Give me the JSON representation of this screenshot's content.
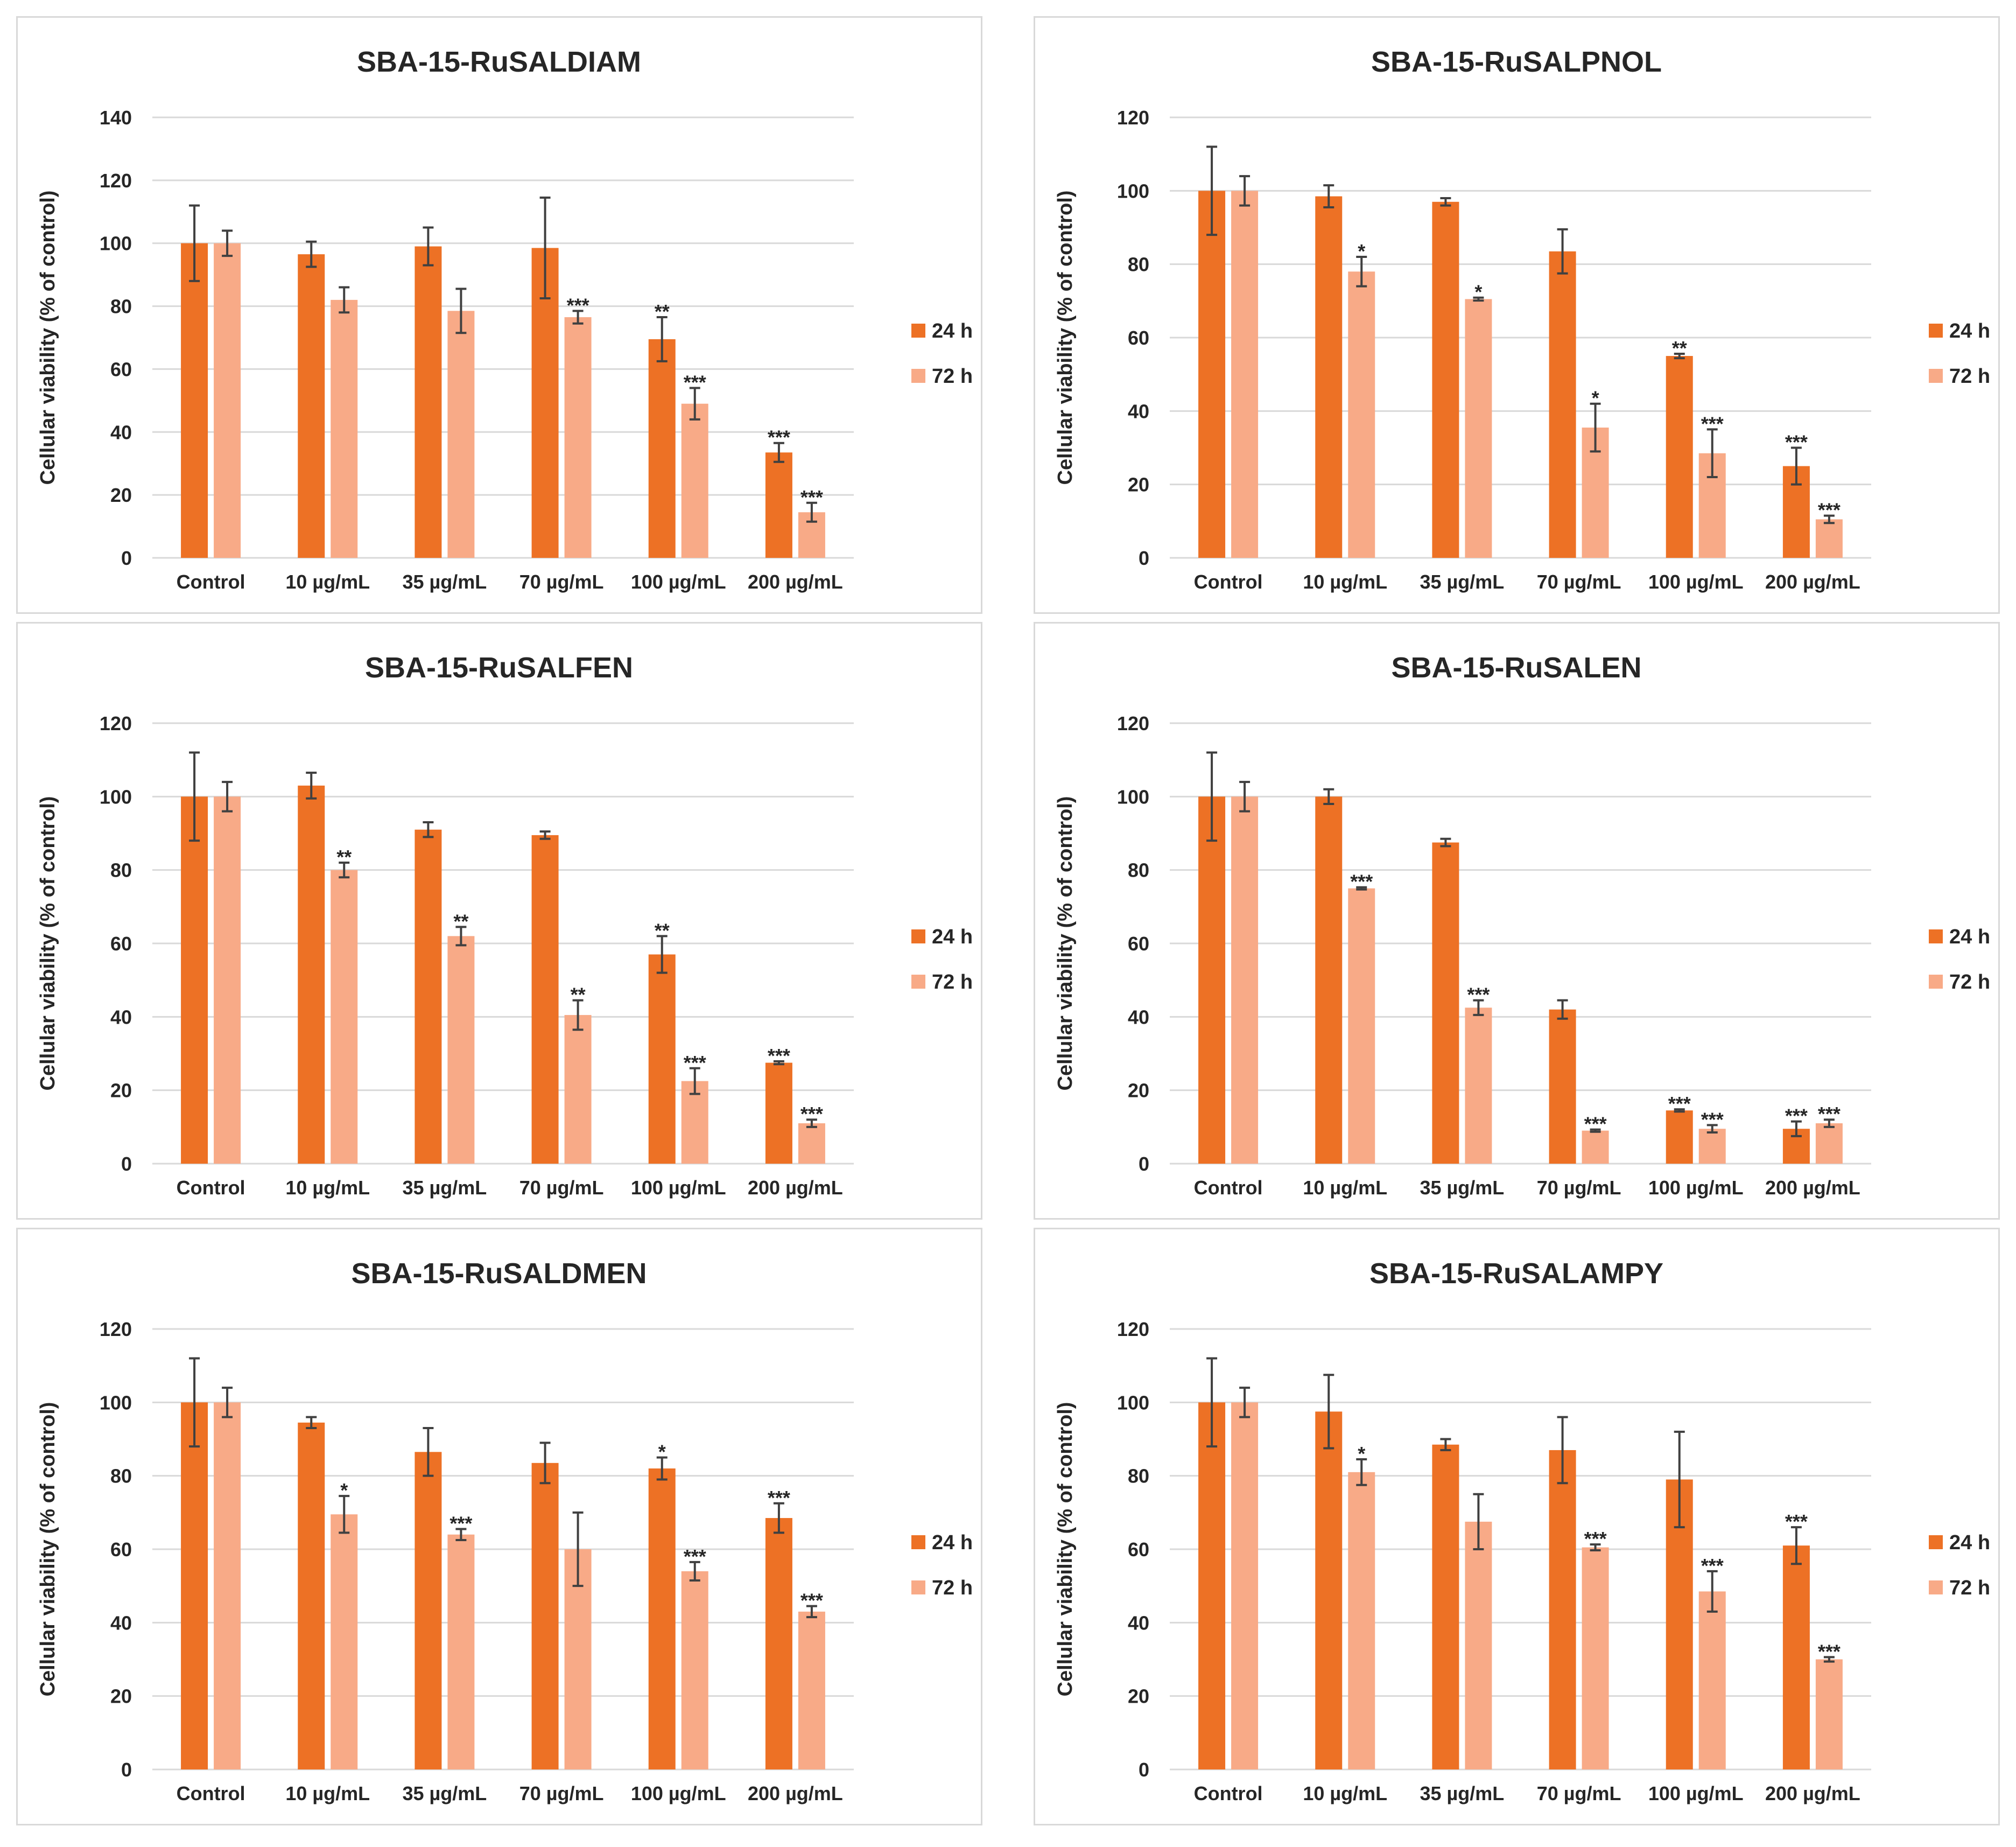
{
  "colors": {
    "series_24h": "#ED7125",
    "series_72h": "#F8AA87",
    "grid": "#d9d9d9",
    "text": "#262626",
    "errorbar": "#404040"
  },
  "chart_data": [
    {
      "type": "bar",
      "title": "SBA-15-RuSALDIAM",
      "ylabel": "Cellular viability (% of control)",
      "xlabel": "",
      "ylim": [
        0,
        140
      ],
      "yticks": [
        "0",
        "20",
        "40",
        "60",
        "80",
        "100",
        "120",
        "140"
      ],
      "categories": [
        "Control",
        "10 µg/mL",
        "35 µg/mL",
        "70 µg/mL",
        "100 µg/mL",
        "200 µg/mL"
      ],
      "legend_position": "right",
      "series": [
        {
          "name": "24 h",
          "values": [
            100,
            96.5,
            99,
            98.5,
            69.5,
            33.5
          ],
          "errors": [
            12,
            4,
            6,
            16,
            7,
            3
          ],
          "significance": [
            "",
            "",
            "",
            "",
            "**",
            "***"
          ]
        },
        {
          "name": "72 h",
          "values": [
            100,
            82,
            78.5,
            76.5,
            49,
            14.5
          ],
          "errors": [
            4,
            4,
            7,
            2,
            5,
            3
          ],
          "significance": [
            "",
            "",
            "",
            "***",
            "***",
            "***"
          ]
        }
      ]
    },
    {
      "type": "bar",
      "title": "SBA-15-RuSALPNOL",
      "ylabel": "Cellular viability (% of control)",
      "xlabel": "",
      "ylim": [
        0,
        120
      ],
      "yticks": [
        "0",
        "20",
        "40",
        "60",
        "80",
        "100",
        "120"
      ],
      "categories": [
        "Control",
        "10 µg/mL",
        "35 µg/mL",
        "70 µg/mL",
        "100 µg/mL",
        "200 µg/mL"
      ],
      "legend_position": "right",
      "series": [
        {
          "name": "24 h",
          "values": [
            100,
            98.5,
            97,
            83.5,
            55,
            25
          ],
          "errors": [
            12,
            3,
            1,
            6,
            0.6,
            5
          ],
          "significance": [
            "",
            "",
            "",
            "",
            "**",
            "***"
          ]
        },
        {
          "name": "72 h",
          "values": [
            100,
            78,
            70.5,
            35.5,
            28.5,
            10.5
          ],
          "errors": [
            4,
            4,
            0.4,
            6.5,
            6.5,
            1
          ],
          "significance": [
            "",
            "*",
            "*",
            "*",
            "***",
            "***"
          ]
        }
      ]
    },
    {
      "type": "bar",
      "title": "SBA-15-RuSALFEN",
      "ylabel": "Cellular viability (% of control)",
      "xlabel": "",
      "ylim": [
        0,
        120
      ],
      "yticks": [
        "0",
        "20",
        "40",
        "60",
        "80",
        "100",
        "120"
      ],
      "categories": [
        "Control",
        "10 µg/mL",
        "35 µg/mL",
        "70 µg/mL",
        "100 µg/mL",
        "200 µg/mL"
      ],
      "legend_position": "right",
      "series": [
        {
          "name": "24 h",
          "values": [
            100,
            103,
            91,
            89.5,
            57,
            27.5
          ],
          "errors": [
            12,
            3.5,
            2,
            1,
            5,
            0.4
          ],
          "significance": [
            "",
            "",
            "",
            "",
            "**",
            "***"
          ]
        },
        {
          "name": "72 h",
          "values": [
            100,
            80,
            62,
            40.5,
            22.5,
            11
          ],
          "errors": [
            4,
            2,
            2.5,
            4,
            3.5,
            1
          ],
          "significance": [
            "",
            "**",
            "**",
            "**",
            "***",
            "***"
          ]
        }
      ]
    },
    {
      "type": "bar",
      "title": "SBA-15-RuSALEN",
      "ylabel": "Cellular viability (% of control)",
      "xlabel": "",
      "ylim": [
        0,
        120
      ],
      "yticks": [
        "0",
        "20",
        "40",
        "60",
        "80",
        "100",
        "120"
      ],
      "categories": [
        "Control",
        "10 µg/mL",
        "35 µg/mL",
        "70 µg/mL",
        "100 µg/mL",
        "200 µg/mL"
      ],
      "legend_position": "right",
      "series": [
        {
          "name": "24 h",
          "values": [
            100,
            100,
            87.5,
            42,
            14.5,
            9.5
          ],
          "errors": [
            12,
            2,
            1,
            2.5,
            0.3,
            2
          ],
          "significance": [
            "",
            "",
            "",
            "",
            "***",
            "***"
          ]
        },
        {
          "name": "72 h",
          "values": [
            100,
            75,
            42.5,
            9,
            9.5,
            11
          ],
          "errors": [
            4,
            0.3,
            2,
            0.3,
            1,
            1
          ],
          "significance": [
            "",
            "***",
            "***",
            "***",
            "***",
            "***"
          ]
        }
      ]
    },
    {
      "type": "bar",
      "title": "SBA-15-RuSALDMEN",
      "ylabel": "Cellular viability (% of control)",
      "xlabel": "",
      "ylim": [
        0,
        120
      ],
      "yticks": [
        "0",
        "20",
        "40",
        "60",
        "80",
        "100",
        "120"
      ],
      "categories": [
        "Control",
        "10 µg/mL",
        "35 µg/mL",
        "70 µg/mL",
        "100 µg/mL",
        "200 µg/mL"
      ],
      "legend_position": "right",
      "series": [
        {
          "name": "24 h",
          "values": [
            100,
            94.5,
            86.5,
            83.5,
            82,
            68.5
          ],
          "errors": [
            12,
            1.5,
            6.5,
            5.5,
            3,
            4
          ],
          "significance": [
            "",
            "",
            "",
            "",
            "*",
            "***"
          ]
        },
        {
          "name": "72 h",
          "values": [
            100,
            69.5,
            64,
            60,
            54,
            43
          ],
          "errors": [
            4,
            5,
            1.5,
            10,
            2.5,
            1.5
          ],
          "significance": [
            "",
            "*",
            "***",
            "",
            "***",
            "***"
          ]
        }
      ]
    },
    {
      "type": "bar",
      "title": "SBA-15-RuSALAMPY",
      "ylabel": "Cellular viability (% of control)",
      "xlabel": "",
      "ylim": [
        0,
        120
      ],
      "yticks": [
        "0",
        "20",
        "40",
        "60",
        "80",
        "100",
        "120"
      ],
      "categories": [
        "Control",
        "10 µg/mL",
        "35 µg/mL",
        "70 µg/mL",
        "100 µg/mL",
        "200 µg/mL"
      ],
      "legend_position": "right",
      "series": [
        {
          "name": "24 h",
          "values": [
            100,
            97.5,
            88.5,
            87,
            79,
            61
          ],
          "errors": [
            12,
            10,
            1.5,
            9,
            13,
            5
          ],
          "significance": [
            "",
            "",
            "",
            "",
            "",
            "***"
          ]
        },
        {
          "name": "72 h",
          "values": [
            100,
            81,
            67.5,
            60.5,
            48.5,
            30
          ],
          "errors": [
            4,
            3.5,
            7.5,
            0.8,
            5.5,
            0.6
          ],
          "significance": [
            "",
            "*",
            "",
            "***",
            "***",
            "***"
          ]
        }
      ]
    }
  ]
}
